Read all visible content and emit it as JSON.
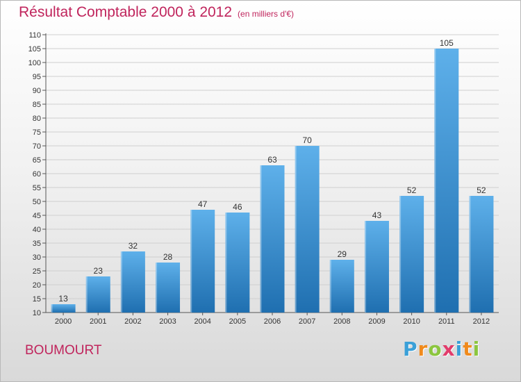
{
  "page": {
    "title": "Résultat Comptable 2000 à 2012",
    "unit": "(en milliers d'€)",
    "commune": "BOUMOURT",
    "logo_letters": [
      "P",
      "r",
      "o",
      "x",
      "i",
      "t",
      "i"
    ],
    "logo_colors": [
      "#3aa0d8",
      "#f08a1c",
      "#8cc63f",
      "#e23c6b",
      "#3aa0d8",
      "#f08a1c",
      "#8cc63f"
    ]
  },
  "colors": {
    "title": "#c0245c",
    "bar_top": "#5eb0ea",
    "bar_bottom": "#1f6fb0",
    "grid": "#cfcfcf"
  },
  "chart_data": {
    "type": "bar",
    "title": "Résultat Comptable 2000 à 2012",
    "subtitle": "(en milliers d'€)",
    "xlabel": "",
    "ylabel": "",
    "categories": [
      "2000",
      "2001",
      "2002",
      "2003",
      "2004",
      "2005",
      "2006",
      "2007",
      "2008",
      "2009",
      "2010",
      "2011",
      "2012"
    ],
    "values": [
      13,
      23,
      32,
      28,
      47,
      46,
      63,
      70,
      29,
      43,
      52,
      105,
      52
    ],
    "ylim": [
      10,
      110
    ],
    "yticks": [
      10,
      15,
      20,
      25,
      30,
      35,
      40,
      45,
      50,
      55,
      60,
      65,
      70,
      75,
      80,
      85,
      90,
      95,
      100,
      105,
      110
    ],
    "grid": true,
    "data_labels": true
  }
}
